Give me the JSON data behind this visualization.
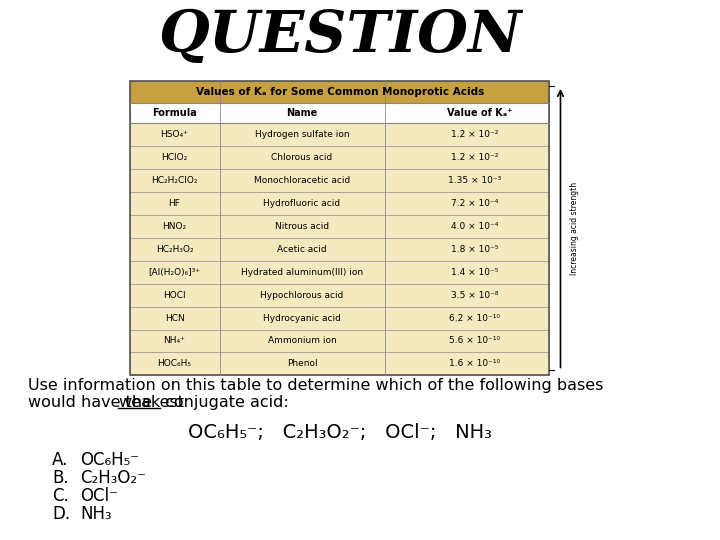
{
  "title": "QUESTION",
  "table_title": "Values of Kₐ for Some Common Monoprotic Acids",
  "col_headers": [
    "Formula",
    "Name",
    "Value of Kₐ⁺"
  ],
  "table_data": [
    [
      "HSO₄⁺",
      "Hydrogen sulfate ion",
      "1.2 × 10⁻²"
    ],
    [
      "HClO₂",
      "Chlorous acid",
      "1.2 × 10⁻²"
    ],
    [
      "HC₂H₂ClO₂",
      "Monochloracetic acid",
      "1.35 × 10⁻³"
    ],
    [
      "HF",
      "Hydrofluoric acid",
      "7.2 × 10⁻⁴"
    ],
    [
      "HNO₂",
      "Nitrous acid",
      "4.0 × 10⁻⁴"
    ],
    [
      "HC₂H₃O₂",
      "Acetic acid",
      "1.8 × 10⁻⁵"
    ],
    [
      "[Al(H₂O)₆]³⁺",
      "Hydrated aluminum(III) ion",
      "1.4 × 10⁻⁵"
    ],
    [
      "HOCl",
      "Hypochlorous acid",
      "3.5 × 10⁻⁸"
    ],
    [
      "HCN",
      "Hydrocyanic acid",
      "6.2 × 10⁻¹⁰"
    ],
    [
      "NH₄⁺",
      "Ammonium ion",
      "5.6 × 10⁻¹⁰"
    ],
    [
      "HOC₆H₅",
      "Phenol",
      "1.6 × 10⁻¹⁰"
    ]
  ],
  "question_text_line1": "Use information on this table to determine which of the following bases",
  "question_text_line2_pre": "would have the ",
  "question_text_line2_ul": "weakest",
  "question_text_line2_post": " conjugate acid:",
  "center_formula": "OC₆H₅⁻;   C₂H₃O₂⁻;   OCl⁻;   NH₃",
  "choices": [
    [
      "A.",
      "OC₆H₅⁻"
    ],
    [
      "B.",
      "C₂H₃O₂⁻"
    ],
    [
      "C.",
      "OCl⁻"
    ],
    [
      "D.",
      "NH₃"
    ]
  ],
  "bg_color": "#ffffff",
  "table_header_bg": "#c8a040",
  "table_body_bg": "#f5e9c0",
  "table_border_color": "#888888",
  "title_color": "#000000",
  "text_color": "#000000"
}
